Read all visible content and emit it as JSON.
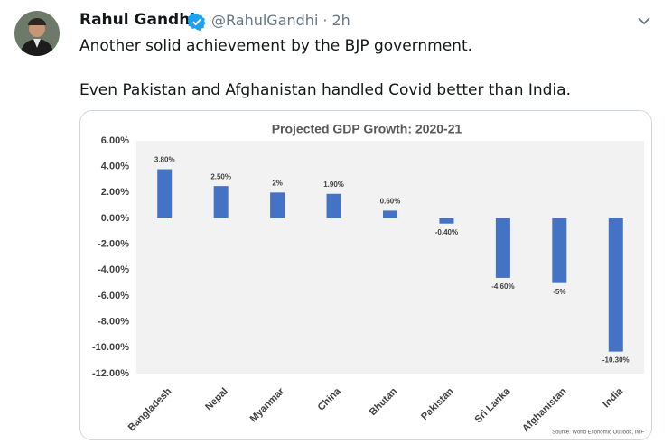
{
  "tweet": {
    "name": "Rahul Gandhi",
    "handle": "@RahulGandhi",
    "separator": "·",
    "time": "2h",
    "text": [
      "Another solid achievement by the BJP government.",
      "Even Pakistan and Afghanistan handled Covid better than India."
    ]
  },
  "chart_data": {
    "type": "bar",
    "title": "Projected GDP Growth: 2020-21",
    "categories": [
      "Bangladesh",
      "Nepal",
      "Myanmar",
      "China",
      "Bhutan",
      "Pakistan",
      "Sri Lanka",
      "Afghanistan",
      "India"
    ],
    "values": [
      3.8,
      2.5,
      2,
      1.9,
      0.6,
      -0.4,
      -4.6,
      -5,
      -10.3
    ],
    "value_labels": [
      "3.80%",
      "2.50%",
      "2%",
      "1.90%",
      "0.60%",
      "-0.40%",
      "-4.60%",
      "-5%",
      "-10.30%"
    ],
    "color": "#4472c4",
    "ylim": [
      -12,
      6
    ],
    "yticks": [
      {
        "value": 6,
        "label": "6.00%"
      },
      {
        "value": 4,
        "label": "4.00%"
      },
      {
        "value": 2,
        "label": "2.00%"
      },
      {
        "value": 0,
        "label": "0.00%"
      },
      {
        "value": -2,
        "label": "-2.00%"
      },
      {
        "value": -4,
        "label": "-4.00%"
      },
      {
        "value": -6,
        "label": "-6.00%"
      },
      {
        "value": -8,
        "label": "-8.00%"
      },
      {
        "value": -10,
        "label": "-10.00%"
      },
      {
        "value": -12,
        "label": "-12.00%"
      }
    ],
    "grid": false,
    "source": "Source: World Economic Outlook, IMF"
  }
}
